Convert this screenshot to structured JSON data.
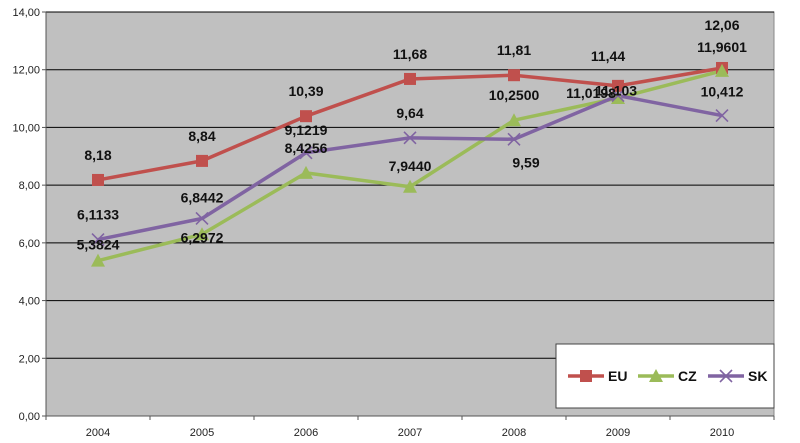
{
  "chart_data": {
    "type": "line",
    "title": "",
    "xlabel": "",
    "ylabel": "",
    "x": [
      "2004",
      "2005",
      "2006",
      "2007",
      "2008",
      "2009",
      "2010"
    ],
    "ylim": [
      0,
      14
    ],
    "yticks": [
      "0,00",
      "2,00",
      "4,00",
      "6,00",
      "8,00",
      "10,00",
      "12,00",
      "14,00"
    ],
    "grid": "horizontal",
    "plot_background": "#c0c0c0",
    "legend": "bottom-right",
    "series": [
      {
        "name": "EU",
        "color": "#c0504d",
        "marker": "square",
        "values": [
          8.18,
          8.84,
          10.39,
          11.68,
          11.81,
          11.44,
          12.06
        ],
        "labels": [
          "8,18",
          "8,84",
          "10,39",
          "11,68",
          "11,81",
          "11,44",
          "12,06"
        ]
      },
      {
        "name": "CZ",
        "color": "#9bbb59",
        "marker": "triangle",
        "values": [
          5.3824,
          6.2972,
          8.4256,
          7.944,
          10.25,
          11.0198,
          11.9601
        ],
        "labels": [
          "5,3824",
          "6,2972",
          "8,4256",
          "7,9440",
          "10,2500",
          "11,0198",
          "11,9601"
        ]
      },
      {
        "name": "SK",
        "color": "#8064a2",
        "marker": "x",
        "values": [
          6.1133,
          6.8442,
          9.1219,
          9.64,
          9.59,
          11.103,
          10.412
        ],
        "labels": [
          "6,1133",
          "6,8442",
          "9,1219",
          "9,64",
          "9,59",
          "11,103",
          "10,412"
        ]
      }
    ]
  }
}
